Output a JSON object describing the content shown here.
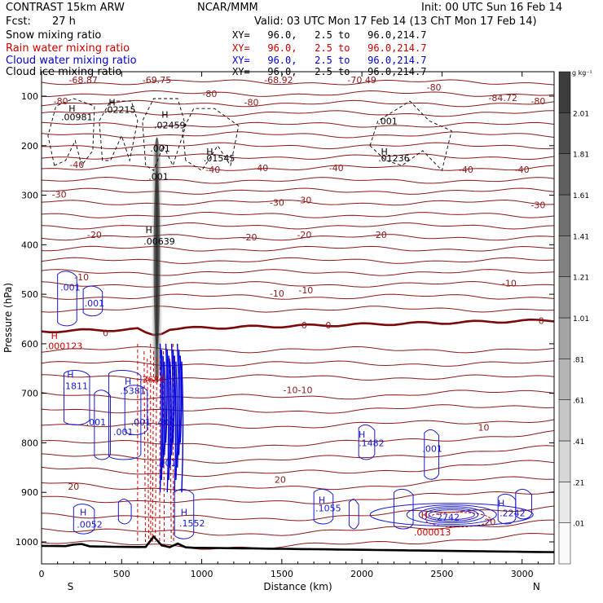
{
  "header": {
    "model": "CONTRAST 15km ARW",
    "org": "NCAR/MMM",
    "init": "Init: 00 UTC Sun 16 Feb 14",
    "fcst_label": "Fcst:",
    "fcst_value": "27 h",
    "valid": "Valid: 03 UTC Mon 17 Feb 14 (13 ChT Mon 17 Feb 14)"
  },
  "fields": [
    {
      "label": "Snow mixing ratio",
      "xy": "XY=   96.0,   2.5 to   96.0,214.7",
      "color": "#000000"
    },
    {
      "label": "Rain water mixing ratio",
      "xy": "XY=   96.0,   2.5 to   96.0,214.7",
      "color": "#cc0000"
    },
    {
      "label": "Cloud water mixing ratio",
      "xy": "XY=   96.0,   2.5 to   96.0,214.7",
      "color": "#0000cc"
    },
    {
      "label": "Cloud ice mixing ratio",
      "xy": "XY=   96.0,   2.5 to   96.0,214.7",
      "color": "#000000"
    }
  ],
  "chart_data": {
    "type": "contour",
    "xlabel": "Distance (km)",
    "ylabel": "Pressure (hPa)",
    "xlim": [
      0,
      3200
    ],
    "ylim": [
      1050,
      50
    ],
    "xticks": [
      0,
      500,
      1000,
      1500,
      2000,
      2500,
      3000
    ],
    "yticks": [
      100,
      200,
      300,
      400,
      500,
      600,
      700,
      800,
      900,
      1000
    ],
    "endpoints": {
      "left": "S",
      "right": "N"
    },
    "colorbar": {
      "unit": "g kg⁻¹",
      "levels": [
        ".01",
        ".21",
        ".41",
        ".61",
        ".81",
        "1.01",
        "1.21",
        "1.41",
        "1.61",
        "1.81",
        "2.01"
      ]
    },
    "temperature_isotherm_labels": [
      {
        "text": "-68.87",
        "x": 260,
        "p": 67
      },
      {
        "text": "-69.75",
        "x": 720,
        "p": 67
      },
      {
        "text": "-68.92",
        "x": 1480,
        "p": 67
      },
      {
        "text": "-70.49",
        "x": 2000,
        "p": 67
      },
      {
        "text": "-84.72",
        "x": 2880,
        "p": 103
      },
      {
        "text": "-80",
        "x": 120,
        "p": 110
      },
      {
        "text": "-80",
        "x": 1050,
        "p": 95
      },
      {
        "text": "-80",
        "x": 1310,
        "p": 112
      },
      {
        "text": "-80",
        "x": 2450,
        "p": 82
      },
      {
        "text": "-80",
        "x": 3100,
        "p": 110
      },
      {
        "text": "-40",
        "x": 220,
        "p": 238
      },
      {
        "text": "-40",
        "x": 1070,
        "p": 248
      },
      {
        "text": "-40",
        "x": 1370,
        "p": 245
      },
      {
        "text": "-40",
        "x": 1840,
        "p": 245
      },
      {
        "text": "-40",
        "x": 2650,
        "p": 248
      },
      {
        "text": "-40",
        "x": 3000,
        "p": 248
      },
      {
        "text": "-30",
        "x": 110,
        "p": 298
      },
      {
        "text": "-30",
        "x": 1470,
        "p": 315
      },
      {
        "text": "-30",
        "x": 1640,
        "p": 310
      },
      {
        "text": "-30",
        "x": 3100,
        "p": 320
      },
      {
        "text": "-20",
        "x": 330,
        "p": 380
      },
      {
        "text": "-20",
        "x": 1300,
        "p": 385
      },
      {
        "text": "-20",
        "x": 1640,
        "p": 380
      },
      {
        "text": "-20",
        "x": 2110,
        "p": 380
      },
      {
        "text": "-10",
        "x": 250,
        "p": 465
      },
      {
        "text": "-10",
        "x": 1470,
        "p": 498
      },
      {
        "text": "-10",
        "x": 1650,
        "p": 492
      },
      {
        "text": "-10",
        "x": 2920,
        "p": 478
      },
      {
        "text": "0",
        "x": 400,
        "p": 578
      },
      {
        "text": "0",
        "x": 1640,
        "p": 562
      },
      {
        "text": "0",
        "x": 1790,
        "p": 562
      },
      {
        "text": "0",
        "x": 3120,
        "p": 553
      },
      {
        "text": "-10-10",
        "x": 1600,
        "p": 693
      },
      {
        "text": "10",
        "x": 2760,
        "p": 769
      },
      {
        "text": "20",
        "x": 200,
        "p": 888
      },
      {
        "text": "20",
        "x": 1490,
        "p": 874
      },
      {
        "text": "20",
        "x": 2800,
        "p": 960
      }
    ],
    "snow_labels": [
      {
        "text": "H",
        "x": 190,
        "p": 125
      },
      {
        "text": ".00981",
        "x": 220,
        "p": 142
      },
      {
        "text": "H",
        "x": 440,
        "p": 112
      },
      {
        "text": ".02215",
        "x": 490,
        "p": 127
      },
      {
        "text": "H",
        "x": 770,
        "p": 137
      },
      {
        "text": ".02459",
        "x": 800,
        "p": 158
      },
      {
        "text": ".001",
        "x": 740,
        "p": 205
      },
      {
        "text": ".001",
        "x": 730,
        "p": 262
      },
      {
        "text": "H",
        "x": 1050,
        "p": 212
      },
      {
        "text": ".01545",
        "x": 1110,
        "p": 225
      },
      {
        "text": ".001",
        "x": 2160,
        "p": 150
      },
      {
        "text": "H",
        "x": 2140,
        "p": 212
      },
      {
        "text": ".01236",
        "x": 2200,
        "p": 225
      }
    ],
    "ice_labels": [
      {
        "text": "H",
        "x": 670,
        "p": 370
      },
      {
        "text": ".00639",
        "x": 735,
        "p": 393
      }
    ],
    "rain_labels": [
      {
        "text": "H",
        "x": 80,
        "p": 584
      },
      {
        "text": ".000123",
        "x": 140,
        "p": 604
      },
      {
        "text": ".3684",
        "x": 690,
        "p": 672
      },
      {
        "text": "H",
        "x": 2390,
        "p": 946
      },
      {
        "text": ".000013",
        "x": 2440,
        "p": 980
      }
    ],
    "cloud_water_labels": [
      {
        "text": ".001",
        "x": 180,
        "p": 486
      },
      {
        "text": ".001",
        "x": 330,
        "p": 518
      },
      {
        "text": "H",
        "x": 180,
        "p": 662
      },
      {
        "text": ".1811",
        "x": 210,
        "p": 685
      },
      {
        "text": "H",
        "x": 540,
        "p": 676
      },
      {
        "text": ".5381",
        "x": 570,
        "p": 695
      },
      {
        "text": ".001",
        "x": 340,
        "p": 758
      },
      {
        "text": ".001",
        "x": 510,
        "p": 778
      },
      {
        "text": ".001",
        "x": 620,
        "p": 758
      },
      {
        "text": ".401",
        "x": 770,
        "p": 758
      },
      {
        "text": ".001",
        "x": 780,
        "p": 840
      },
      {
        "text": "H",
        "x": 260,
        "p": 940
      },
      {
        "text": ".0052",
        "x": 300,
        "p": 965
      },
      {
        "text": "H",
        "x": 890,
        "p": 940
      },
      {
        "text": ".1552",
        "x": 940,
        "p": 962
      },
      {
        "text": "H",
        "x": 1750,
        "p": 915
      },
      {
        "text": ".1055",
        "x": 1790,
        "p": 932
      },
      {
        "text": "H",
        "x": 2000,
        "p": 783
      },
      {
        "text": ".1482",
        "x": 2060,
        "p": 800
      },
      {
        "text": ".001",
        "x": 2440,
        "p": 812
      },
      {
        "text": ".2742",
        "x": 2530,
        "p": 950
      },
      {
        "text": "H",
        "x": 2870,
        "p": 922
      },
      {
        "text": ".2242",
        "x": 2940,
        "p": 942
      }
    ]
  }
}
